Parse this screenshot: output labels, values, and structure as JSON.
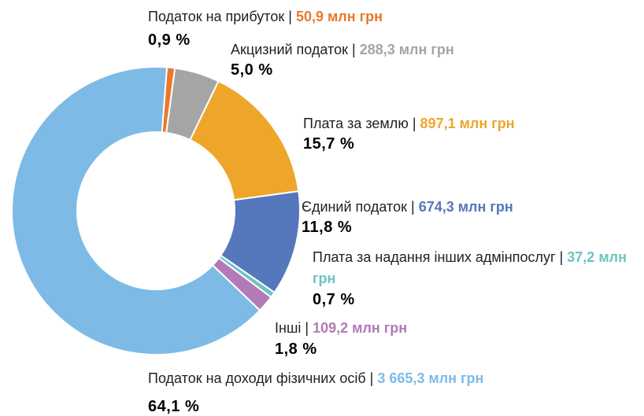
{
  "chart_data": {
    "type": "donut",
    "separator": "|",
    "categories": [
      "Податок на прибуток",
      "Акцизний податок",
      "Плата за землю",
      "Єдиний податок",
      "Плата за надання інших адмінпослуг",
      "Інші",
      "Податок на доходи фізичних осіб"
    ],
    "values": [
      50.9,
      288.3,
      897.1,
      674.3,
      37.2,
      109.2,
      3665.3
    ],
    "value_labels": [
      "50,9 млн грн",
      "288,3 млн грн",
      "897,1 млн грн",
      "674,3 млн грн",
      "37,2 млн грн",
      "109,2 млн грн",
      "3 665,3 млн грн"
    ],
    "percents": [
      0.9,
      5.0,
      15.7,
      11.8,
      0.7,
      1.8,
      64.1
    ],
    "percent_labels": [
      "0,9 %",
      "5,0 %",
      "15,7 %",
      "11,8 %",
      "0,7 %",
      "1,8 %",
      "64,1 %"
    ],
    "colors": [
      "#e8792b",
      "#a5a5a5",
      "#eea62a",
      "#5577bb",
      "#6cc4c0",
      "#b27ab8",
      "#7dbbe6"
    ]
  }
}
